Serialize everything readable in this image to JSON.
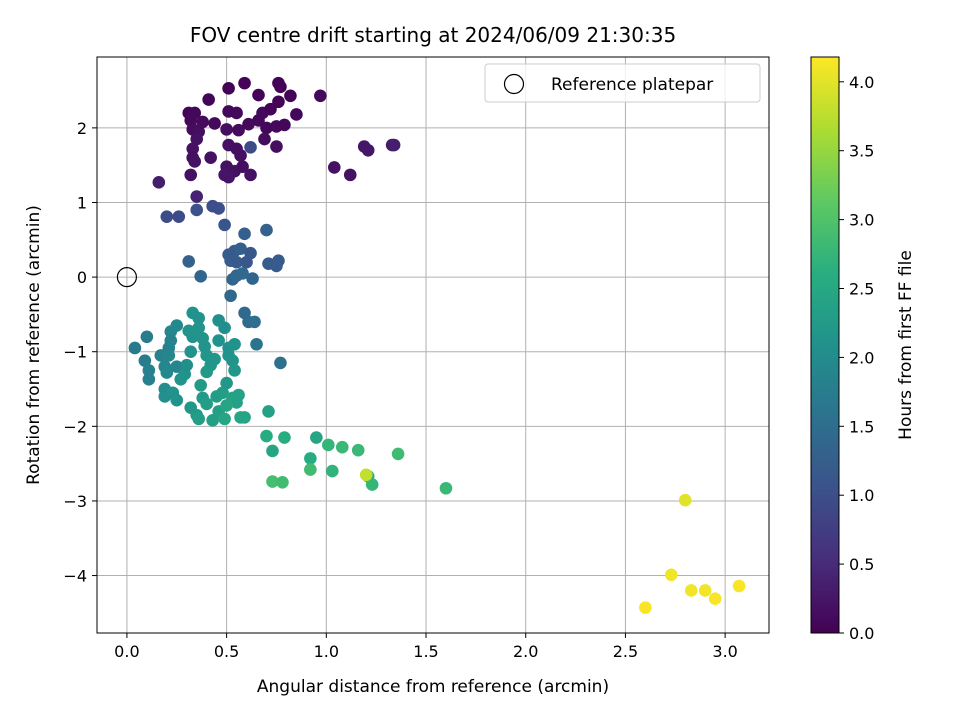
{
  "chart_data": {
    "type": "scatter",
    "title": "FOV centre drift starting at 2024/06/09 21:30:35",
    "xlabel": "Angular distance from reference (arcmin)",
    "ylabel": "Rotation from reference (arcmin)",
    "xlim": [
      -0.15,
      3.22
    ],
    "ylim": [
      -4.77,
      2.95
    ],
    "xticks": [
      0.0,
      0.5,
      1.0,
      1.5,
      2.0,
      2.5,
      3.0
    ],
    "xtick_labels": [
      "0.0",
      "0.5",
      "1.0",
      "1.5",
      "2.0",
      "2.5",
      "3.0"
    ],
    "yticks": [
      -4,
      -3,
      -2,
      -1,
      0,
      1,
      2
    ],
    "ytick_labels": [
      "−4",
      "−3",
      "−2",
      "−1",
      "0",
      "1",
      "2"
    ],
    "grid": true,
    "legend": {
      "position": "top-right",
      "entries": [
        "Reference platepar"
      ]
    },
    "reference_point": {
      "x": 0.0,
      "y": 0.0
    },
    "colorbar": {
      "label": "Hours from first FF file",
      "colormap": "viridis",
      "range": [
        0.0,
        4.18
      ],
      "ticks": [
        0.0,
        0.5,
        1.0,
        1.5,
        2.0,
        2.5,
        3.0,
        3.5,
        4.0
      ],
      "tick_labels": [
        "0.0",
        "0.5",
        "1.0",
        "1.5",
        "2.0",
        "2.5",
        "3.0",
        "3.5",
        "4.0"
      ]
    },
    "series": [
      {
        "points": [
          [
            0.31,
            2.2,
            0.05
          ],
          [
            0.32,
            2.1,
            0.1
          ],
          [
            0.34,
            2.2,
            0.08
          ],
          [
            0.33,
            1.98,
            0.12
          ],
          [
            0.36,
            1.95,
            0.15
          ],
          [
            0.38,
            2.08,
            0.12
          ],
          [
            0.41,
            2.38,
            0.05
          ],
          [
            0.44,
            2.06,
            0.1
          ],
          [
            0.51,
            2.53,
            0.03
          ],
          [
            0.51,
            2.22,
            0.08
          ],
          [
            0.55,
            2.2,
            0.1
          ],
          [
            0.5,
            1.98,
            0.15
          ],
          [
            0.59,
            2.6,
            0.05
          ],
          [
            0.56,
            1.97,
            0.12
          ],
          [
            0.61,
            2.05,
            0.1
          ],
          [
            0.66,
            2.44,
            0.05
          ],
          [
            0.66,
            2.1,
            0.08
          ],
          [
            0.68,
            2.2,
            0.1
          ],
          [
            0.7,
            2.0,
            0.08
          ],
          [
            0.72,
            2.25,
            0.05
          ],
          [
            0.76,
            2.35,
            0.03
          ],
          [
            0.76,
            2.6,
            0.03
          ],
          [
            0.77,
            2.55,
            0.05
          ],
          [
            0.75,
            2.02,
            0.1
          ],
          [
            0.79,
            2.04,
            0.08
          ],
          [
            0.82,
            2.43,
            0.05
          ],
          [
            0.85,
            2.18,
            0.08
          ],
          [
            0.97,
            2.43,
            0.1
          ],
          [
            0.75,
            1.75,
            0.15
          ],
          [
            0.69,
            1.85,
            0.12
          ],
          [
            0.62,
            1.74,
            0.95
          ],
          [
            0.35,
            1.85,
            0.2
          ],
          [
            0.33,
            1.72,
            0.2
          ],
          [
            0.33,
            1.6,
            0.18
          ],
          [
            0.34,
            1.55,
            0.2
          ],
          [
            0.42,
            1.6,
            0.2
          ],
          [
            0.51,
            1.77,
            0.2
          ],
          [
            0.57,
            1.63,
            0.2
          ],
          [
            0.55,
            1.72,
            0.18
          ],
          [
            0.5,
            1.48,
            0.2
          ],
          [
            0.54,
            1.42,
            0.2
          ],
          [
            0.58,
            1.48,
            0.15
          ],
          [
            0.32,
            1.37,
            0.2
          ],
          [
            0.49,
            1.37,
            0.25
          ],
          [
            0.51,
            1.34,
            0.22
          ],
          [
            0.62,
            1.37,
            0.2
          ],
          [
            0.16,
            1.27,
            0.35
          ],
          [
            0.35,
            1.08,
            0.4
          ],
          [
            1.04,
            1.47,
            0.2
          ],
          [
            1.12,
            1.37,
            0.2
          ],
          [
            1.19,
            1.75,
            0.25
          ],
          [
            1.21,
            1.7,
            0.25
          ],
          [
            1.33,
            1.77,
            0.3
          ],
          [
            1.34,
            1.77,
            0.35
          ],
          [
            0.2,
            0.81,
            0.95
          ],
          [
            0.26,
            0.81,
            0.95
          ],
          [
            0.35,
            0.9,
            1.05
          ],
          [
            0.43,
            0.95,
            1.0
          ],
          [
            0.46,
            0.92,
            1.0
          ],
          [
            0.49,
            0.7,
            1.1
          ],
          [
            0.7,
            0.63,
            1.3
          ],
          [
            0.59,
            0.58,
            1.25
          ],
          [
            0.51,
            0.3,
            1.2
          ],
          [
            0.54,
            0.35,
            1.2
          ],
          [
            0.57,
            0.38,
            1.25
          ],
          [
            0.52,
            0.22,
            1.2
          ],
          [
            0.55,
            0.2,
            1.2
          ],
          [
            0.6,
            0.2,
            1.15
          ],
          [
            0.62,
            0.32,
            1.15
          ],
          [
            0.71,
            0.18,
            1.2
          ],
          [
            0.75,
            0.15,
            1.2
          ],
          [
            0.76,
            0.22,
            1.2
          ],
          [
            0.31,
            0.21,
            1.3
          ],
          [
            0.37,
            0.01,
            1.35
          ],
          [
            0.53,
            -0.03,
            1.35
          ],
          [
            0.55,
            0.02,
            1.4
          ],
          [
            0.58,
            0.05,
            1.4
          ],
          [
            0.63,
            -0.02,
            1.35
          ],
          [
            0.52,
            -0.25,
            1.4
          ],
          [
            0.59,
            -0.48,
            1.4
          ],
          [
            0.61,
            -0.6,
            1.45
          ],
          [
            0.64,
            -0.6,
            1.5
          ],
          [
            0.65,
            -0.9,
            1.6
          ],
          [
            0.77,
            -1.15,
            1.55
          ],
          [
            0.04,
            -0.95,
            1.7
          ],
          [
            0.1,
            -0.8,
            1.75
          ],
          [
            0.09,
            -1.12,
            1.75
          ],
          [
            0.11,
            -1.25,
            1.8
          ],
          [
            0.11,
            -1.37,
            1.8
          ],
          [
            0.17,
            -1.05,
            1.85
          ],
          [
            0.21,
            -0.95,
            1.8
          ],
          [
            0.22,
            -0.73,
            1.9
          ],
          [
            0.22,
            -0.85,
            1.85
          ],
          [
            0.25,
            -0.65,
            1.95
          ],
          [
            0.19,
            -1.2,
            1.9
          ],
          [
            0.2,
            -1.28,
            1.95
          ],
          [
            0.21,
            -1.05,
            1.9
          ],
          [
            0.25,
            -1.2,
            1.9
          ],
          [
            0.19,
            -1.5,
            2.0
          ],
          [
            0.19,
            -1.6,
            2.05
          ],
          [
            0.23,
            -1.55,
            2.1
          ],
          [
            0.25,
            -1.65,
            2.1
          ],
          [
            0.27,
            -1.37,
            2.15
          ],
          [
            0.29,
            -1.3,
            2.1
          ],
          [
            0.3,
            -1.18,
            2.05
          ],
          [
            0.32,
            -1.0,
            2.1
          ],
          [
            0.33,
            -0.8,
            2.1
          ],
          [
            0.31,
            -0.72,
            2.15
          ],
          [
            0.33,
            -0.48,
            2.1
          ],
          [
            0.36,
            -0.55,
            2.1
          ],
          [
            0.36,
            -0.68,
            2.15
          ],
          [
            0.38,
            -0.82,
            2.15
          ],
          [
            0.39,
            -0.93,
            2.15
          ],
          [
            0.4,
            -1.05,
            2.2
          ],
          [
            0.42,
            -1.18,
            2.2
          ],
          [
            0.4,
            -1.27,
            2.25
          ],
          [
            0.44,
            -1.1,
            2.2
          ],
          [
            0.46,
            -0.85,
            2.1
          ],
          [
            0.46,
            -0.58,
            2.05
          ],
          [
            0.49,
            -0.68,
            2.05
          ],
          [
            0.51,
            -0.95,
            2.05
          ],
          [
            0.51,
            -1.05,
            2.1
          ],
          [
            0.53,
            -1.12,
            2.15
          ],
          [
            0.54,
            -1.25,
            2.2
          ],
          [
            0.54,
            -0.9,
            2.1
          ],
          [
            0.37,
            -1.45,
            2.25
          ],
          [
            0.38,
            -1.62,
            2.25
          ],
          [
            0.4,
            -1.7,
            2.3
          ],
          [
            0.32,
            -1.75,
            2.2
          ],
          [
            0.35,
            -1.85,
            2.25
          ],
          [
            0.36,
            -1.9,
            2.3
          ],
          [
            0.43,
            -1.92,
            2.35
          ],
          [
            0.46,
            -1.8,
            2.35
          ],
          [
            0.49,
            -1.9,
            2.45
          ],
          [
            0.45,
            -1.6,
            2.3
          ],
          [
            0.48,
            -1.55,
            2.3
          ],
          [
            0.5,
            -1.42,
            2.2
          ],
          [
            0.53,
            -1.62,
            2.4
          ],
          [
            0.55,
            -1.68,
            2.4
          ],
          [
            0.56,
            -1.58,
            2.4
          ],
          [
            0.57,
            -1.88,
            2.45
          ],
          [
            0.59,
            -1.88,
            2.45
          ],
          [
            0.5,
            -1.72,
            2.45
          ],
          [
            0.71,
            -1.8,
            2.4
          ],
          [
            0.7,
            -2.13,
            2.55
          ],
          [
            0.73,
            -2.33,
            2.45
          ],
          [
            0.79,
            -2.15,
            2.6
          ],
          [
            0.95,
            -2.15,
            2.45
          ],
          [
            1.01,
            -2.25,
            2.75
          ],
          [
            1.08,
            -2.28,
            2.8
          ],
          [
            1.16,
            -2.32,
            2.8
          ],
          [
            0.92,
            -2.43,
            2.55
          ],
          [
            0.92,
            -2.58,
            2.85
          ],
          [
            1.03,
            -2.6,
            2.7
          ],
          [
            1.21,
            -2.67,
            2.6
          ],
          [
            1.23,
            -2.78,
            2.75
          ],
          [
            1.36,
            -2.37,
            2.85
          ],
          [
            0.73,
            -2.74,
            2.9
          ],
          [
            0.78,
            -2.75,
            2.85
          ],
          [
            1.6,
            -2.83,
            2.8
          ],
          [
            1.2,
            -2.65,
            3.8
          ],
          [
            2.8,
            -2.99,
            4.0
          ],
          [
            2.73,
            -3.99,
            4.1
          ],
          [
            2.6,
            -4.43,
            4.15
          ],
          [
            2.83,
            -4.2,
            4.1
          ],
          [
            2.9,
            -4.2,
            4.1
          ],
          [
            2.95,
            -4.31,
            4.15
          ],
          [
            3.07,
            -4.14,
            4.15
          ]
        ]
      }
    ]
  }
}
